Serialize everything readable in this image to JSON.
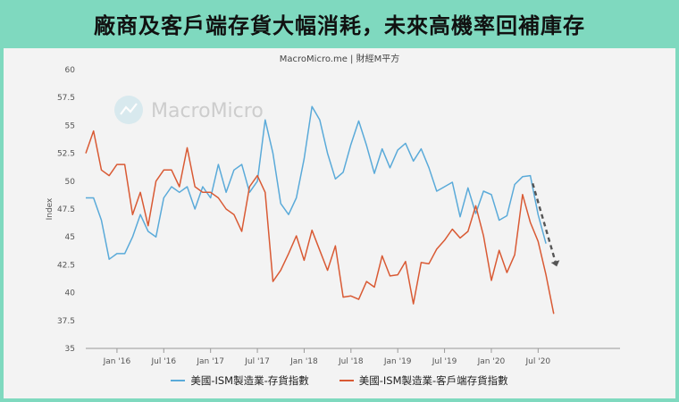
{
  "header": {
    "title": "廠商及客戶端存貨大幅消耗，未來高機率回補庫存"
  },
  "source_label": "MacroMicro.me | 財經M平方",
  "watermark": {
    "text": "MacroMicro"
  },
  "chart_data": {
    "type": "line",
    "ylabel": "Index",
    "ylim": [
      35,
      60
    ],
    "yticks": [
      35,
      37.5,
      40,
      42.5,
      45,
      47.5,
      50,
      52.5,
      55,
      57.5,
      60
    ],
    "xlim": [
      0,
      68.5
    ],
    "xticks": [
      {
        "label": "Jan '16",
        "x": 4
      },
      {
        "label": "Jul '16",
        "x": 10
      },
      {
        "label": "Jan '17",
        "x": 16
      },
      {
        "label": "Jul '17",
        "x": 22
      },
      {
        "label": "Jan '18",
        "x": 28
      },
      {
        "label": "Jul '18",
        "x": 34
      },
      {
        "label": "Jan '19",
        "x": 40
      },
      {
        "label": "Jul '19",
        "x": 46
      },
      {
        "label": "Jan '20",
        "x": 52
      },
      {
        "label": "Jul '20",
        "x": 58
      }
    ],
    "series": [
      {
        "name": "美國-ISM製造業-存貨指數",
        "color": "#5aaad9",
        "values": [
          48.5,
          48.5,
          46.5,
          43.0,
          43.5,
          43.5,
          45.0,
          47.0,
          45.5,
          45.0,
          48.5,
          49.5,
          49.0,
          49.5,
          47.5,
          49.5,
          48.5,
          51.5,
          49.0,
          51.0,
          51.5,
          49.0,
          50.0,
          55.5,
          52.5,
          48.0,
          47.0,
          48.5,
          52.0,
          56.7,
          55.5,
          52.5,
          50.2,
          50.8,
          53.3,
          55.4,
          53.2,
          50.7,
          52.9,
          51.2,
          52.8,
          53.4,
          51.8,
          52.9,
          51.2,
          49.1,
          49.5,
          49.9,
          46.8,
          49.4,
          47.1,
          49.1,
          48.8,
          46.5,
          46.9,
          49.7,
          50.4,
          50.5,
          47.0,
          44.4
        ]
      },
      {
        "name": "美國-ISM製造業-客戶端存貨指數",
        "color": "#d95a34",
        "values": [
          52.5,
          54.5,
          51.0,
          50.5,
          51.5,
          51.5,
          47.0,
          49.0,
          46.0,
          50.0,
          51.0,
          51.0,
          49.5,
          53.0,
          49.5,
          49.0,
          49.0,
          48.5,
          47.5,
          47.0,
          45.5,
          49.5,
          50.5,
          49.0,
          41.0,
          42.0,
          43.5,
          45.1,
          42.9,
          45.6,
          43.8,
          42.0,
          44.2,
          39.6,
          39.7,
          39.4,
          41.0,
          40.5,
          43.3,
          41.5,
          41.6,
          42.8,
          39.0,
          42.7,
          42.6,
          43.9,
          44.7,
          45.7,
          44.9,
          45.5,
          47.8,
          45.1,
          41.1,
          43.8,
          41.8,
          43.4,
          48.8,
          46.3,
          44.6,
          41.6,
          38.1
        ]
      }
    ],
    "legend_position": "bottom",
    "grid": false
  }
}
